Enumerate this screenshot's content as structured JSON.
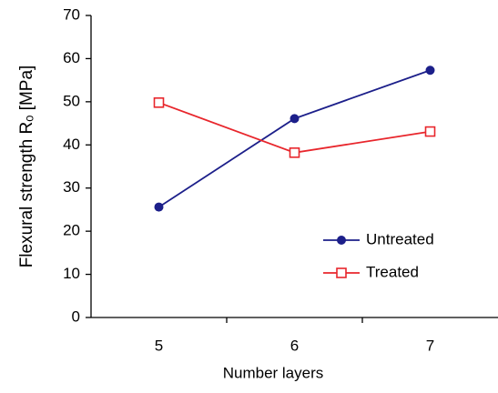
{
  "chart_data": {
    "type": "line",
    "x_label": "Number layers",
    "y_label": "Flexural strength Rₒ [MPa]",
    "categories": [
      "5",
      "6",
      "7"
    ],
    "series": [
      {
        "name": "Untreated",
        "color": "#1c1f8a",
        "marker": "filled-circle",
        "values": [
          25.6,
          46.1,
          57.3
        ]
      },
      {
        "name": "Treated",
        "color": "#e8262c",
        "marker": "open-square",
        "values": [
          49.8,
          38.2,
          43.1
        ]
      }
    ],
    "ylim": [
      0,
      70
    ],
    "yticks": [
      0,
      10,
      20,
      30,
      40,
      50,
      60,
      70
    ],
    "grid": false,
    "legend": "lower right"
  }
}
